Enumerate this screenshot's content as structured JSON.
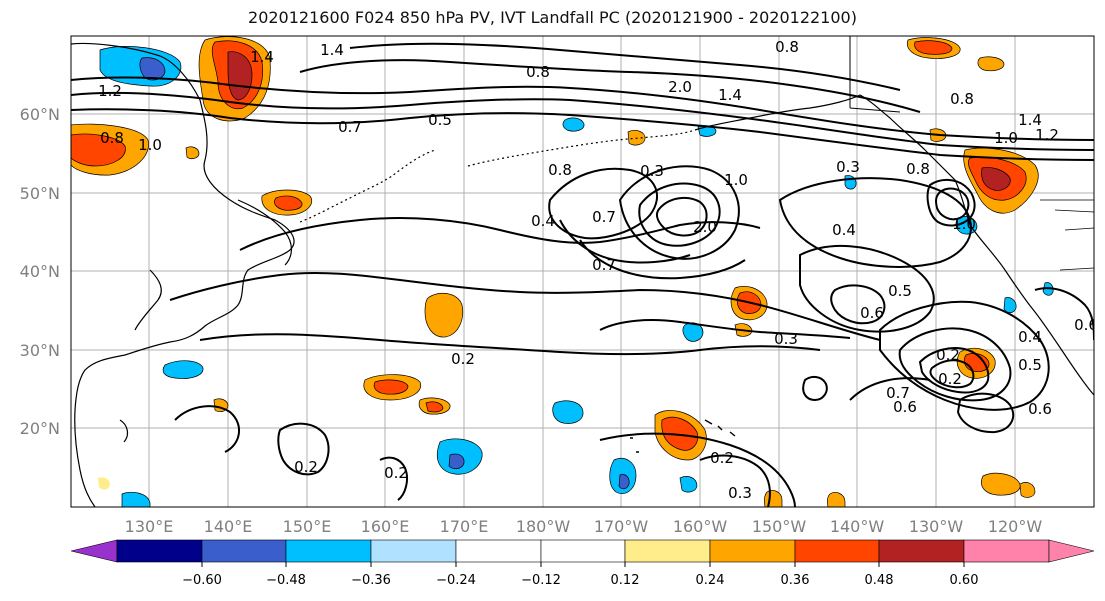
{
  "title": "2020121600 F024 850 hPa PV, IVT Landfall PC (2020121900 - 2020122100)",
  "lon_labels": [
    "130°E",
    "140°E",
    "150°E",
    "160°E",
    "170°E",
    "180°W",
    "170°W",
    "160°W",
    "150°W",
    "140°W",
    "130°W",
    "120°W"
  ],
  "lat_labels": [
    "60°N",
    "50°N",
    "40°N",
    "30°N",
    "20°N"
  ],
  "contour_labels": [
    "1.4",
    "0.8",
    "1.2",
    "1.0",
    "0.8",
    "0.5",
    "0.7",
    "1.4",
    "2.0",
    "1.4",
    "0.8",
    "1.0",
    "1.2",
    "1.4",
    "0.3",
    "0.4",
    "0.2",
    "0.7",
    "0.7",
    "2.0",
    "0.4",
    "0.5",
    "0.6",
    "0.3",
    "0.2",
    "0.2",
    "0.2",
    "0.2",
    "0.5",
    "0.6",
    "0.6",
    "0.7",
    "0.2",
    "0.3",
    "0.3",
    "0.6",
    "0.4",
    "0.8",
    "0.8",
    "1.0",
    "0.8",
    "1.0"
  ],
  "colorbar": {
    "labels": [
      "−0.60",
      "−0.48",
      "−0.36",
      "−0.24",
      "−0.12",
      "0.12",
      "0.24",
      "0.36",
      "0.48",
      "0.60"
    ],
    "colors": [
      "#9932cc",
      "#00008b",
      "#3a5fcd",
      "#00bfff",
      "#b0e2ff",
      "#ffffff",
      "#ffec8b",
      "#ffa500",
      "#ff4500",
      "#b22222",
      "#ff82ab"
    ]
  },
  "legend_colors": {
    "neg_strong": "#3a5fcd",
    "neg_mid": "#00bfff",
    "neg_weak": "#b0e2ff",
    "pos_weak": "#ffec8b",
    "pos_mid": "#ffa500",
    "pos_strong": "#ff4500",
    "pos_max": "#b22222",
    "neg_max": "#9932cc"
  }
}
